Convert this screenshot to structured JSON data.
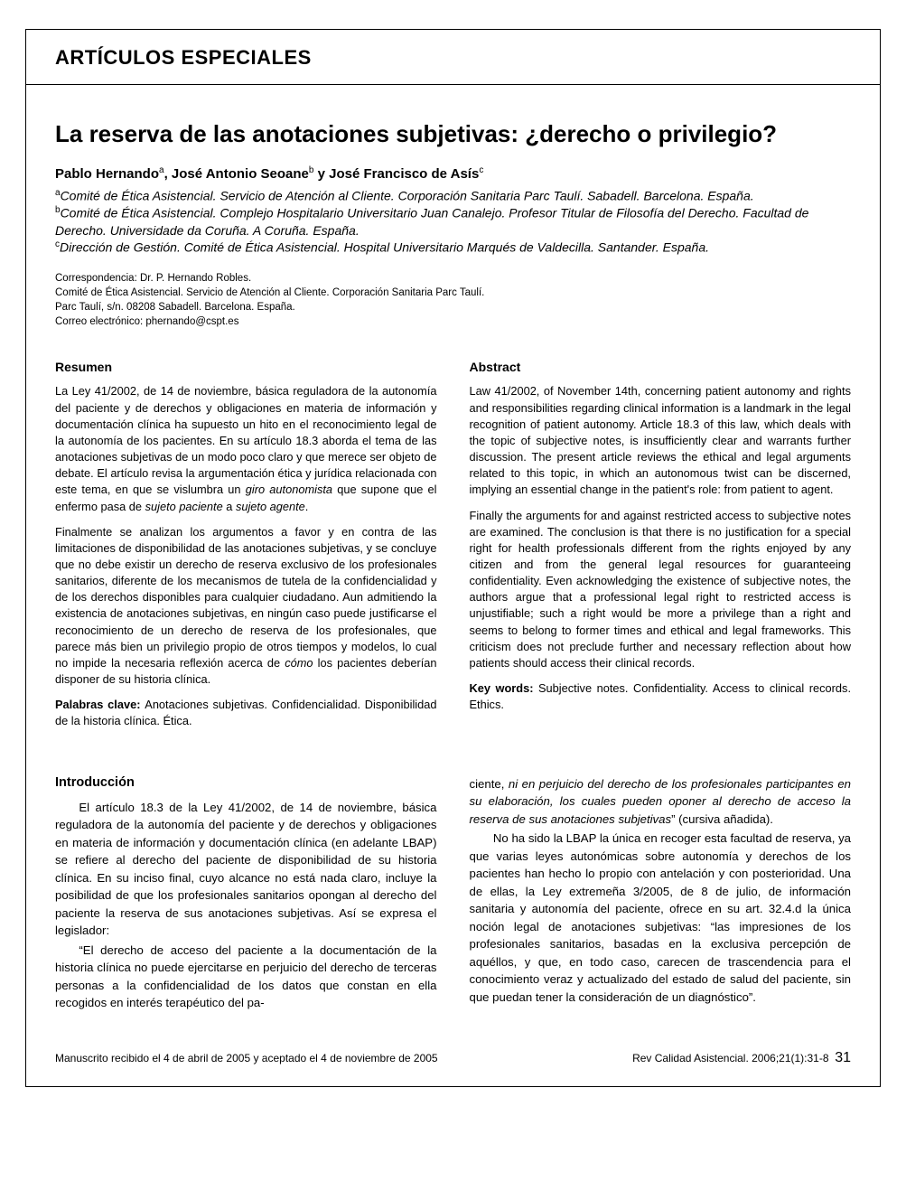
{
  "header": {
    "section_label": "ARTÍCULOS ESPECIALES"
  },
  "article": {
    "title": "La reserva de las anotaciones subjetivas: ¿derecho o privilegio?",
    "authors_html": "Pablo Hernando<sup>a</sup>, José Antonio Seoane<sup>b</sup> y José Francisco de Asís<sup>c</sup>",
    "affiliations": {
      "a": "Comité de Ética Asistencial. Servicio de Atención al Cliente. Corporación Sanitaria Parc Taulí. Sabadell. Barcelona. España.",
      "b": "Comité de Ética Asistencial. Complejo Hospitalario Universitario Juan Canalejo. Profesor Titular de Filosofía del Derecho. Facultad de Derecho. Universidade da Coruña. A Coruña. España.",
      "c": "Dirección de Gestión. Comité de Ética Asistencial. Hospital Universitario Marqués de Valdecilla. Santander. España."
    },
    "correspondence": {
      "line1": "Correspondencia: Dr. P. Hernando Robles.",
      "line2": "Comité de Ética Asistencial. Servicio de Atención al Cliente. Corporación Sanitaria Parc Taulí.",
      "line3": "Parc Taulí, s/n. 08208 Sabadell. Barcelona. España.",
      "line4": "Correo electrónico: phernando@cspt.es"
    }
  },
  "resumen": {
    "heading": "Resumen",
    "p1_pre": "La Ley 41/2002, de 14 de noviembre, básica reguladora de la autonomía del paciente y de derechos y obligaciones en materia de información y documentación clínica ha supuesto un hito en el reconocimiento legal de la autonomía de los pacientes. En su artículo 18.3 aborda el tema de las anotaciones subjetivas de un modo poco claro y que merece ser objeto de debate. El artículo revisa la argumentación ética y jurídica relacionada con este tema, en que se vislumbra un ",
    "p1_em1": "giro autonomista",
    "p1_mid": " que supone que el enfermo pasa de ",
    "p1_em2": "sujeto paciente",
    "p1_mid2": " a ",
    "p1_em3": "sujeto agente",
    "p1_suf": ".",
    "p2_pre": "Finalmente se analizan los argumentos a favor y en contra de las limitaciones de disponibilidad de las anotaciones subjetivas, y se concluye que no debe existir un derecho de reserva exclusivo de los profesionales sanitarios, diferente de los mecanismos de tutela de la confidencialidad y de los derechos disponibles para cualquier ciudadano. Aun admitiendo la existencia de anotaciones subjetivas, en ningún caso puede justificarse el reconocimiento de un derecho de reserva de los profesionales, que parece más bien un privilegio propio de otros tiempos y modelos, lo cual no impide la necesaria reflexión acerca de ",
    "p2_em1": "cómo",
    "p2_suf": " los pacientes deberían disponer de su historia clínica.",
    "keywords_label": "Palabras clave: ",
    "keywords": "Anotaciones subjetivas. Confidencialidad. Disponibilidad de la historia clínica. Ética."
  },
  "abstract": {
    "heading": "Abstract",
    "p1": "Law 41/2002, of November 14th, concerning patient autonomy and rights and responsibilities regarding clinical information is a landmark in the legal recognition of patient autonomy. Article 18.3 of this law, which deals with the topic of subjective notes, is insufficiently clear and warrants further discussion. The present article reviews the ethical and legal arguments related to this topic, in which an autonomous twist can be discerned, implying an essential change in the patient's role: from patient to agent.",
    "p2": "Finally the arguments for and against restricted access to subjective notes are examined. The conclusion is that there is no justification for a special right for health professionals different from the rights enjoyed by any citizen and from the general legal resources for guaranteeing confidentiality. Even acknowledging the existence of subjective notes, the authors argue that a professional legal right to restricted access is unjustifiable; such a right would be more a privilege than a right and seems to belong to former times and ethical and legal frameworks. This criticism does not preclude further and necessary reflection about how patients should access their clinical records.",
    "keywords_label": "Key words: ",
    "keywords": "Subjective notes. Confidentiality. Access to clinical records. Ethics."
  },
  "intro": {
    "heading": "Introducción",
    "left_p1": "El artículo 18.3 de la Ley 41/2002, de 14 de noviembre, básica reguladora de la autonomía del paciente y de derechos y obligaciones en materia de información y documentación clínica (en adelante LBAP) se refiere al derecho del paciente de disponibilidad de su historia clínica. En su inciso final, cuyo alcance no está nada claro, incluye la posibilidad de que los profesionales sanitarios opongan al derecho del paciente la reserva de sus anotaciones subjetivas. Así se expresa el legislador:",
    "left_p2": "“El derecho de acceso del paciente a la documentación de la historia clínica no puede ejercitarse en perjuicio del derecho de terceras personas a la confidencialidad de los datos que constan en ella recogidos en interés terapéutico del pa-",
    "right_p1_pre": "ciente, ",
    "right_p1_em": "ni en perjuicio del derecho de los profesionales participantes en su elaboración, los cuales pueden oponer al derecho de acceso la reserva de sus anotaciones subjetivas",
    "right_p1_suf": "” (cursiva añadida).",
    "right_p2": "No ha sido la LBAP la única en recoger esta facultad de reserva, ya que varias leyes autonómicas sobre autonomía y derechos de los pacientes han hecho lo propio con antelación y con posterioridad. Una de ellas, la Ley extremeña 3/2005, de 8 de julio, de información sanitaria y autonomía del paciente, ofrece en su art. 32.4.d la única noción legal de anotaciones subjetivas: “las impresiones de los profesionales sanitarios, basadas en la exclusiva percepción de aquéllos, y que, en todo caso, carecen de trascendencia para el conocimiento veraz y actualizado del estado de salud del paciente, sin que puedan tener la consideración de un diagnóstico”."
  },
  "footer": {
    "received": "Manuscrito recibido el 4 de abril de 2005 y aceptado el 4 de noviembre de 2005",
    "citation": "Rev Calidad Asistencial. 2006;21(1):31-8",
    "page": "31"
  },
  "style": {
    "text_color": "#000000",
    "bg_color": "#ffffff",
    "border_color": "#000000"
  }
}
